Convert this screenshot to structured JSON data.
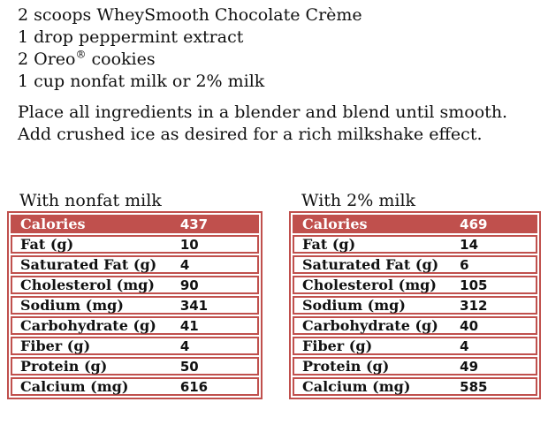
{
  "colors": {
    "table_red": "#C0504D",
    "header_text": "#FFFFFF",
    "body_text": "#111111"
  },
  "recipe": {
    "ingredients": [
      {
        "text": "2 scoops WheySmooth Chocolate Crème"
      },
      {
        "text": "1 drop peppermint extract"
      },
      {
        "pre": "2 Oreo",
        "sup": "®",
        "post": " cookies"
      },
      {
        "text": "1 cup nonfat milk or 2% milk"
      }
    ],
    "instructions": [
      "Place all ingredients in a blender and blend until smooth.",
      "Add crushed ice as desired for a rich milkshake effect."
    ]
  },
  "tables": [
    {
      "title": "With nonfat milk",
      "rows": [
        {
          "label": "Calories",
          "value": "437"
        },
        {
          "label": "Fat (g)",
          "value": "10"
        },
        {
          "label": "Saturated Fat (g)",
          "value": "4"
        },
        {
          "label": "Cholesterol (mg)",
          "value": "90"
        },
        {
          "label": "Sodium (mg)",
          "value": "341"
        },
        {
          "label": "Carbohydrate (g)",
          "value": "41"
        },
        {
          "label": "Fiber (g)",
          "value": "4"
        },
        {
          "label": "Protein (g)",
          "value": "50"
        },
        {
          "label": "Calcium (mg)",
          "value": "616"
        }
      ]
    },
    {
      "title": "With 2% milk",
      "rows": [
        {
          "label": "Calories",
          "value": "469"
        },
        {
          "label": "Fat (g)",
          "value": "14"
        },
        {
          "label": "Saturated Fat (g)",
          "value": "6"
        },
        {
          "label": "Cholesterol (mg)",
          "value": "105"
        },
        {
          "label": "Sodium (mg)",
          "value": "312"
        },
        {
          "label": "Carbohydrate (g)",
          "value": "40"
        },
        {
          "label": "Fiber (g)",
          "value": "4"
        },
        {
          "label": "Protein (g)",
          "value": "49"
        },
        {
          "label": "Calcium (mg)",
          "value": "585"
        }
      ]
    }
  ]
}
